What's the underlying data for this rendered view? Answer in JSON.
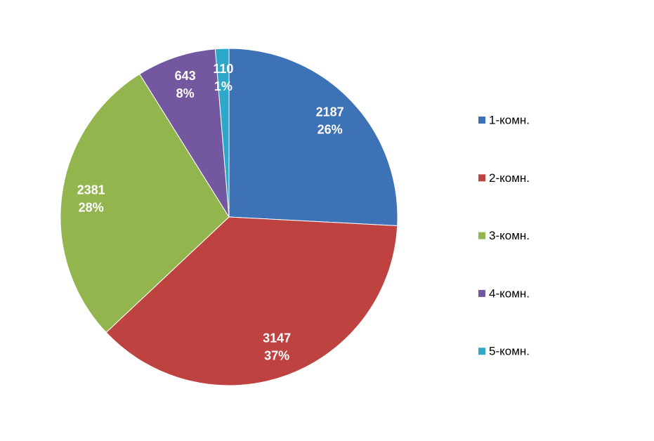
{
  "chart_data": {
    "type": "pie",
    "categories": [
      "1-комн.",
      "2-комн.",
      "3-комн.",
      "4-комн.",
      "5-комн."
    ],
    "values": [
      2187,
      3147,
      2381,
      643,
      110
    ],
    "percent_labels": [
      "26%",
      "37%",
      "28%",
      "8%",
      "1%"
    ],
    "colors": [
      "#3d72b6",
      "#be4240",
      "#93b54e",
      "#7358a0",
      "#2ea8c8"
    ],
    "legend": "right"
  }
}
